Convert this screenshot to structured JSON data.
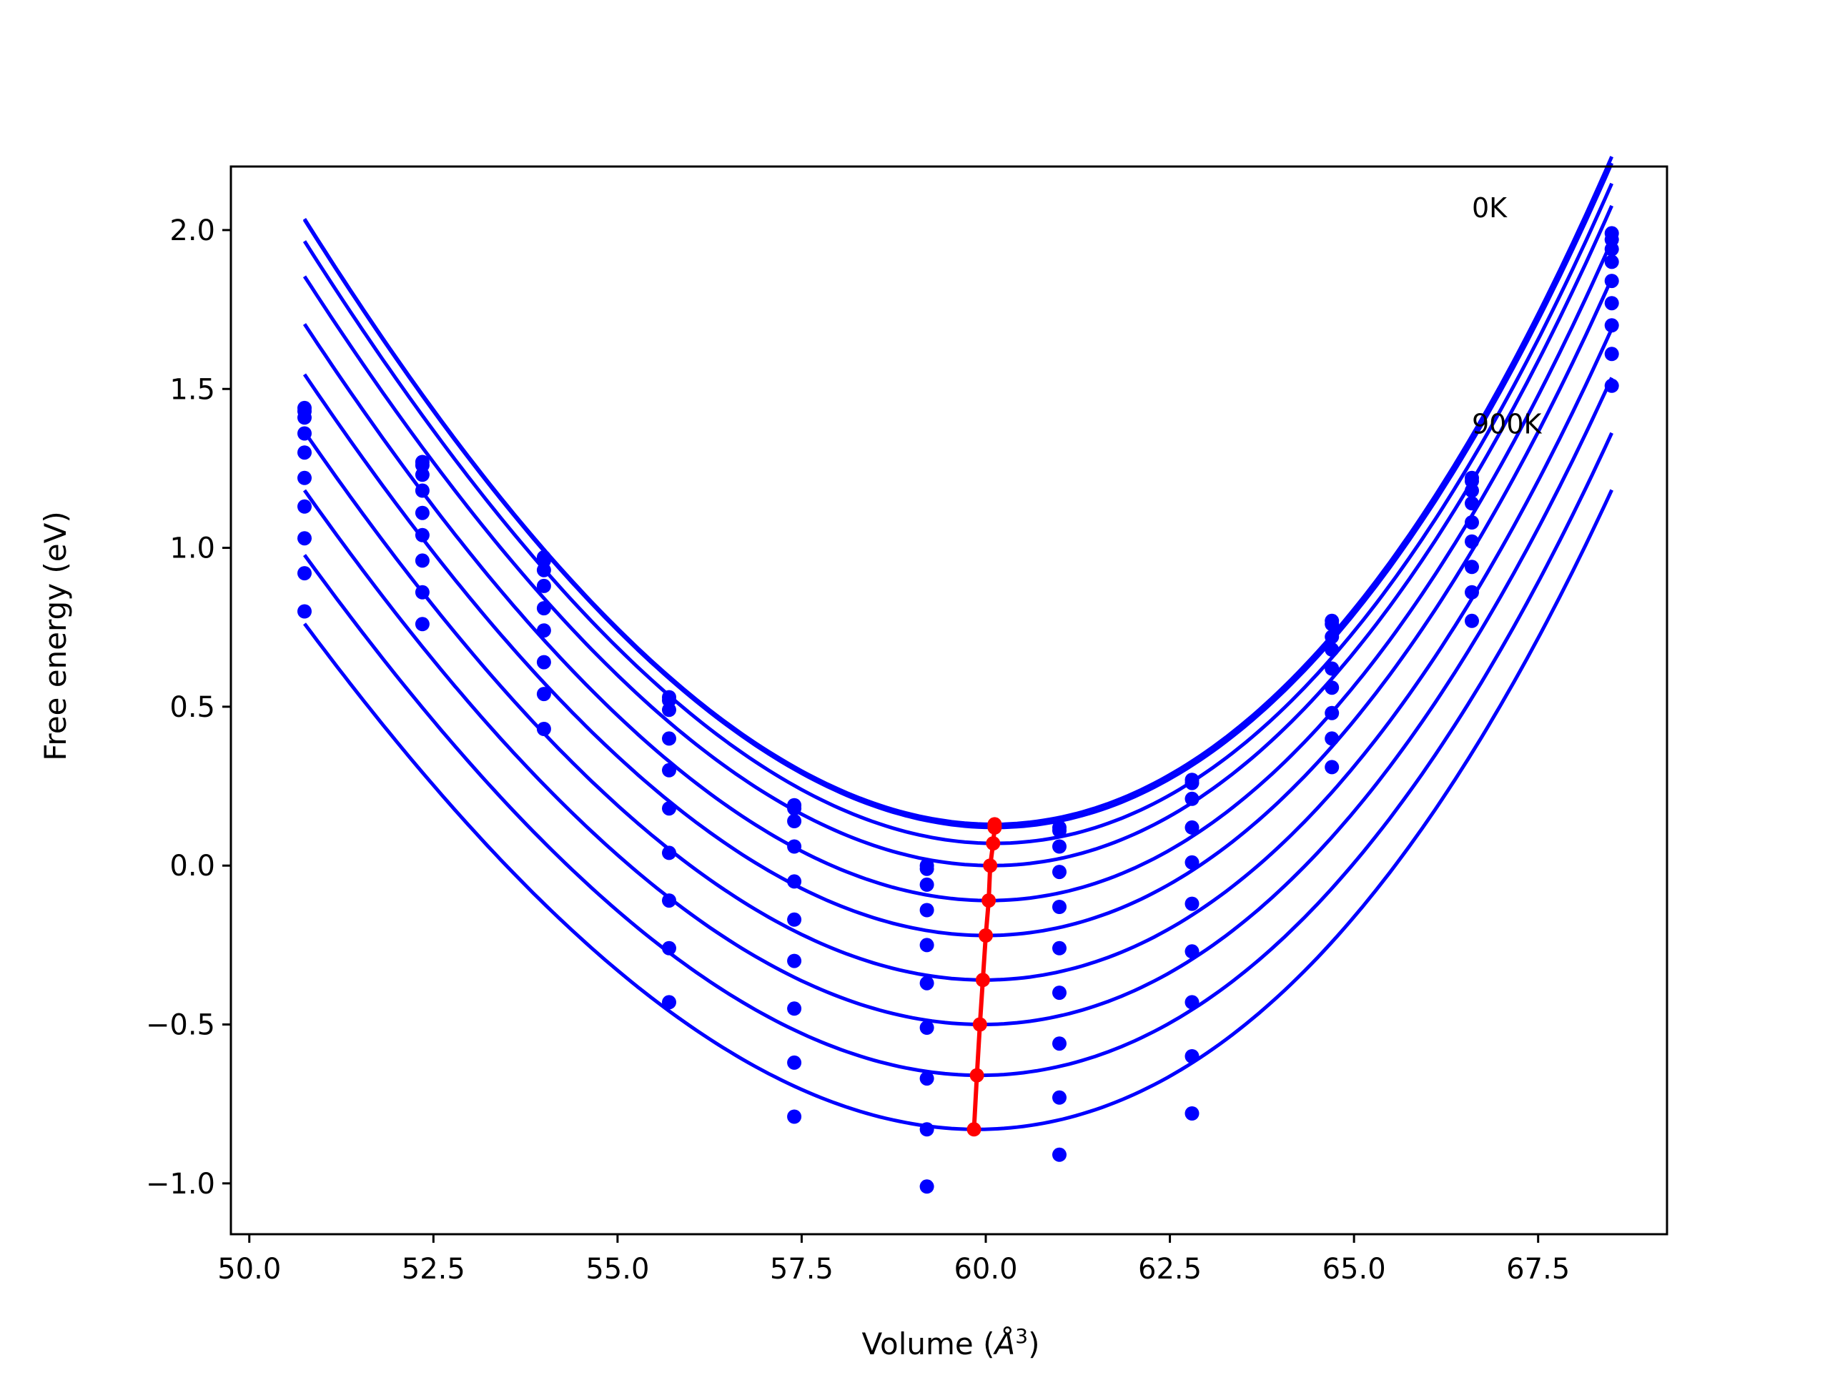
{
  "chart_data": {
    "type": "scatter",
    "title": "",
    "xlabel_prefix": "Volume (",
    "xlabel_unit": "Å",
    "xlabel_power": "3",
    "xlabel_suffix": ")",
    "ylabel": "Free energy (eV)",
    "xlim": [
      49.75,
      69.25
    ],
    "ylim": [
      -1.16,
      2.2
    ],
    "x_ticks": [
      50.0,
      52.5,
      55.0,
      57.5,
      60.0,
      62.5,
      65.0,
      67.5
    ],
    "x_tick_labels": [
      "50.0",
      "52.5",
      "55.0",
      "57.5",
      "60.0",
      "62.5",
      "65.0",
      "67.5"
    ],
    "y_ticks": [
      2.0,
      1.5,
      1.0,
      0.5,
      0.0,
      -0.5,
      -1.0
    ],
    "y_tick_labels": [
      "2.0",
      "1.5",
      "1.0",
      "0.5",
      "0.0",
      "−0.5",
      "−1.0"
    ],
    "grid": false,
    "annotations": [
      {
        "text": "0K",
        "x": 66.6,
        "y": 2.04
      },
      {
        "text": "900K",
        "x": 66.6,
        "y": 1.36
      }
    ],
    "volumes": [
      50.75,
      52.35,
      54.0,
      55.7,
      57.4,
      59.2,
      61.0,
      62.8,
      64.7,
      66.6,
      68.5
    ],
    "series": [
      {
        "points": [
          1.44,
          1.27,
          0.97,
          0.53,
          0.19,
          0.0,
          0.12,
          0.27,
          0.77,
          1.22,
          1.99
        ]
      },
      {
        "points": [
          1.43,
          1.26,
          0.96,
          0.52,
          0.18,
          -0.01,
          0.11,
          0.26,
          0.76,
          1.21,
          1.97
        ]
      },
      {
        "points": [
          1.41,
          1.23,
          0.93,
          0.49,
          0.14,
          -0.06,
          0.06,
          0.21,
          0.72,
          1.18,
          1.94
        ]
      },
      {
        "points": [
          1.36,
          1.18,
          0.88,
          0.4,
          0.06,
          -0.14,
          -0.02,
          0.12,
          0.68,
          1.14,
          1.9
        ]
      },
      {
        "points": [
          1.3,
          1.11,
          0.81,
          0.3,
          -0.05,
          -0.25,
          -0.13,
          0.01,
          0.62,
          1.08,
          1.84
        ]
      },
      {
        "points": [
          1.22,
          1.04,
          0.74,
          0.18,
          -0.17,
          -0.37,
          -0.26,
          -0.12,
          0.56,
          1.02,
          1.77
        ]
      },
      {
        "points": [
          1.13,
          0.96,
          0.64,
          0.04,
          -0.3,
          -0.51,
          -0.4,
          -0.27,
          0.48,
          0.94,
          1.7
        ]
      },
      {
        "points": [
          1.03,
          0.86,
          0.54,
          -0.11,
          -0.45,
          -0.67,
          -0.56,
          -0.43,
          0.4,
          0.86,
          1.61
        ]
      },
      {
        "points": [
          0.92,
          0.76,
          0.43,
          -0.26,
          -0.62,
          -0.83,
          -0.73,
          -0.6,
          0.31,
          0.77,
          1.51
        ]
      },
      {
        "points": [
          0.8,
          null,
          null,
          -0.43,
          -0.79,
          -1.01,
          -0.91,
          -0.78,
          null,
          null,
          null
        ]
      }
    ],
    "fit_curves": [
      {
        "v0": 60.1,
        "e0": 0.13,
        "k": 0.026,
        "c": 0.00045
      },
      {
        "v0": 60.12,
        "e0": 0.12,
        "k": 0.026,
        "c": 0.00045
      },
      {
        "v0": 60.12,
        "e0": 0.07,
        "k": 0.0258,
        "c": 0.00045
      },
      {
        "v0": 60.08,
        "e0": 0.0,
        "k": 0.0255,
        "c": 0.00045
      },
      {
        "v0": 60.04,
        "e0": -0.11,
        "k": 0.0252,
        "c": 0.00045
      },
      {
        "v0": 60.0,
        "e0": -0.22,
        "k": 0.0248,
        "c": 0.00045
      },
      {
        "v0": 59.98,
        "e0": -0.36,
        "k": 0.0244,
        "c": 0.00045
      },
      {
        "v0": 59.95,
        "e0": -0.5,
        "k": 0.024,
        "c": 0.00045
      },
      {
        "v0": 59.92,
        "e0": -0.66,
        "k": 0.0236,
        "c": 0.00045
      },
      {
        "v0": 59.88,
        "e0": -0.83,
        "k": 0.0232,
        "c": 0.00045
      }
    ],
    "curve_range": [
      50.75,
      68.5
    ],
    "minima_line": {
      "color": "#ff0000",
      "x": [
        60.12,
        60.12,
        60.1,
        60.06,
        60.04,
        60.0,
        59.96,
        59.92,
        59.88,
        59.84
      ],
      "y": [
        0.13,
        0.12,
        0.07,
        0.0,
        -0.11,
        -0.22,
        -0.36,
        -0.5,
        -0.66,
        -0.83
      ]
    },
    "series_color": "#0000ff"
  }
}
